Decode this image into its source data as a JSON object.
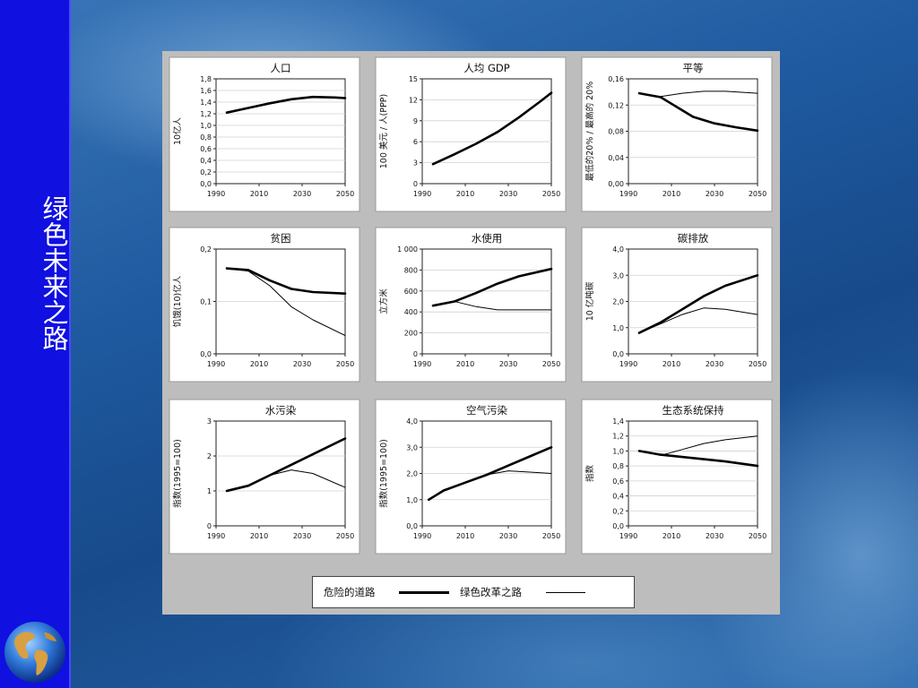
{
  "slide": {
    "vertical_title": "绿色未来之路"
  },
  "legend": {
    "danger_label": "危险的道路",
    "green_label": "绿色改革之路"
  },
  "chart_data": [
    {
      "type": "line",
      "title": "人口",
      "ylabel": "10亿人",
      "ylim": [
        0,
        1.8
      ],
      "yticks": [
        "0,0",
        "0,2",
        "0,4",
        "0,6",
        "0,8",
        "1,0",
        "1,2",
        "1,4",
        "1,6",
        "1,8"
      ],
      "xticks": [
        "1990",
        "2010",
        "2030",
        "2050"
      ],
      "series": [
        {
          "style": "thick",
          "x": [
            1995,
            2005,
            2015,
            2025,
            2035,
            2045,
            2050
          ],
          "y": [
            1.22,
            1.3,
            1.38,
            1.45,
            1.49,
            1.48,
            1.47
          ]
        }
      ]
    },
    {
      "type": "line",
      "title": "人均 GDP",
      "ylabel": "100 美元 / 人(PPP)",
      "ylim": [
        0,
        15
      ],
      "yticks": [
        "0",
        "3",
        "6",
        "9",
        "12",
        "15"
      ],
      "xticks": [
        "1990",
        "2010",
        "2030",
        "2050"
      ],
      "series": [
        {
          "style": "thick",
          "x": [
            1995,
            2005,
            2015,
            2025,
            2035,
            2045,
            2050
          ],
          "y": [
            2.8,
            4.2,
            5.7,
            7.4,
            9.5,
            11.8,
            13.0
          ]
        }
      ]
    },
    {
      "type": "line",
      "title": "平等",
      "ylabel": "最低的20% / 最高的 20%",
      "ylim": [
        0,
        0.16
      ],
      "yticks": [
        "0,00",
        "0,04",
        "0,08",
        "0,12",
        "0,16"
      ],
      "xticks": [
        "1990",
        "2010",
        "2030",
        "2050"
      ],
      "series": [
        {
          "style": "thick",
          "x": [
            1995,
            2005,
            2010,
            2020,
            2030,
            2040,
            2050
          ],
          "y": [
            0.138,
            0.132,
            0.122,
            0.102,
            0.092,
            0.086,
            0.081
          ]
        },
        {
          "style": "thin",
          "x": [
            1995,
            2005,
            2015,
            2025,
            2035,
            2050
          ],
          "y": [
            0.138,
            0.133,
            0.138,
            0.141,
            0.141,
            0.138
          ]
        }
      ]
    },
    {
      "type": "line",
      "title": "贫困",
      "ylabel": "饥饿(10)亿人",
      "ylim": [
        0,
        0.2
      ],
      "yticks": [
        "0,0",
        "0,1",
        "0,2"
      ],
      "xticks": [
        "1990",
        "2010",
        "2030",
        "2050"
      ],
      "series": [
        {
          "style": "thick",
          "x": [
            1995,
            2005,
            2015,
            2025,
            2035,
            2050
          ],
          "y": [
            0.163,
            0.16,
            0.14,
            0.124,
            0.118,
            0.115
          ]
        },
        {
          "style": "thin",
          "x": [
            1995,
            2005,
            2015,
            2025,
            2035,
            2050
          ],
          "y": [
            0.163,
            0.158,
            0.13,
            0.09,
            0.065,
            0.035
          ]
        }
      ]
    },
    {
      "type": "line",
      "title": "水使用",
      "ylabel": "立方米",
      "ylim": [
        0,
        1000
      ],
      "yticks": [
        "0",
        "200",
        "400",
        "600",
        "800",
        "1 000"
      ],
      "xticks": [
        "1990",
        "2010",
        "2030",
        "2050"
      ],
      "series": [
        {
          "style": "thick",
          "x": [
            1995,
            2005,
            2015,
            2025,
            2035,
            2050
          ],
          "y": [
            460,
            500,
            580,
            670,
            740,
            810
          ]
        },
        {
          "style": "thin",
          "x": [
            1995,
            2005,
            2015,
            2025,
            2035,
            2050
          ],
          "y": [
            460,
            500,
            450,
            420,
            420,
            420
          ]
        }
      ]
    },
    {
      "type": "line",
      "title": "碳排放",
      "ylabel": "10 亿吨碳",
      "ylim": [
        0,
        4.0
      ],
      "yticks": [
        "0,0",
        "1,0",
        "2,0",
        "3,0",
        "4,0"
      ],
      "xticks": [
        "1990",
        "2010",
        "2030",
        "2050"
      ],
      "series": [
        {
          "style": "thick",
          "x": [
            1995,
            2005,
            2015,
            2025,
            2035,
            2050
          ],
          "y": [
            0.8,
            1.2,
            1.7,
            2.2,
            2.6,
            3.0
          ]
        },
        {
          "style": "thin",
          "x": [
            1995,
            2005,
            2015,
            2025,
            2035,
            2050
          ],
          "y": [
            0.8,
            1.15,
            1.5,
            1.75,
            1.7,
            1.5
          ]
        }
      ]
    },
    {
      "type": "line",
      "title": "水污染",
      "ylabel": "指数(1995=100)",
      "ylim": [
        0,
        3
      ],
      "yticks": [
        "0",
        "1",
        "2",
        "3"
      ],
      "xticks": [
        "1990",
        "2010",
        "2030",
        "2050"
      ],
      "series": [
        {
          "style": "thick",
          "x": [
            1995,
            2005,
            2015,
            2025,
            2035,
            2050
          ],
          "y": [
            1.0,
            1.15,
            1.45,
            1.75,
            2.05,
            2.5
          ]
        },
        {
          "style": "thin",
          "x": [
            1995,
            2005,
            2015,
            2025,
            2035,
            2050
          ],
          "y": [
            1.0,
            1.15,
            1.45,
            1.6,
            1.5,
            1.1
          ]
        }
      ]
    },
    {
      "type": "line",
      "title": "空气污染",
      "ylabel": "指数(1995=100)",
      "ylim": [
        0,
        4.0
      ],
      "yticks": [
        "0,0",
        "1,0",
        "2,0",
        "3,0",
        "4,0"
      ],
      "xticks": [
        "1990",
        "2010",
        "2030",
        "2050"
      ],
      "series": [
        {
          "style": "thick",
          "x": [
            1993,
            2000,
            2010,
            2020,
            2030,
            2040,
            2050
          ],
          "y": [
            1.0,
            1.35,
            1.65,
            1.95,
            2.3,
            2.65,
            3.0
          ]
        },
        {
          "style": "thin",
          "x": [
            1993,
            2000,
            2010,
            2020,
            2030,
            2040,
            2050
          ],
          "y": [
            1.0,
            1.35,
            1.65,
            1.95,
            2.1,
            2.05,
            2.0
          ]
        }
      ]
    },
    {
      "type": "line",
      "title": "生态系统保持",
      "ylabel": "指数",
      "ylim": [
        0,
        1.4
      ],
      "yticks": [
        "0,0",
        "0,2",
        "0,4",
        "0,6",
        "0,8",
        "1,0",
        "1,2",
        "1,4"
      ],
      "xticks": [
        "1990",
        "2010",
        "2030",
        "2050"
      ],
      "series": [
        {
          "style": "thick",
          "x": [
            1995,
            2005,
            2015,
            2025,
            2035,
            2050
          ],
          "y": [
            1.0,
            0.95,
            0.92,
            0.89,
            0.86,
            0.8
          ]
        },
        {
          "style": "thin",
          "x": [
            1995,
            2005,
            2015,
            2025,
            2035,
            2050
          ],
          "y": [
            1.0,
            0.94,
            1.02,
            1.1,
            1.15,
            1.2
          ]
        }
      ]
    }
  ]
}
